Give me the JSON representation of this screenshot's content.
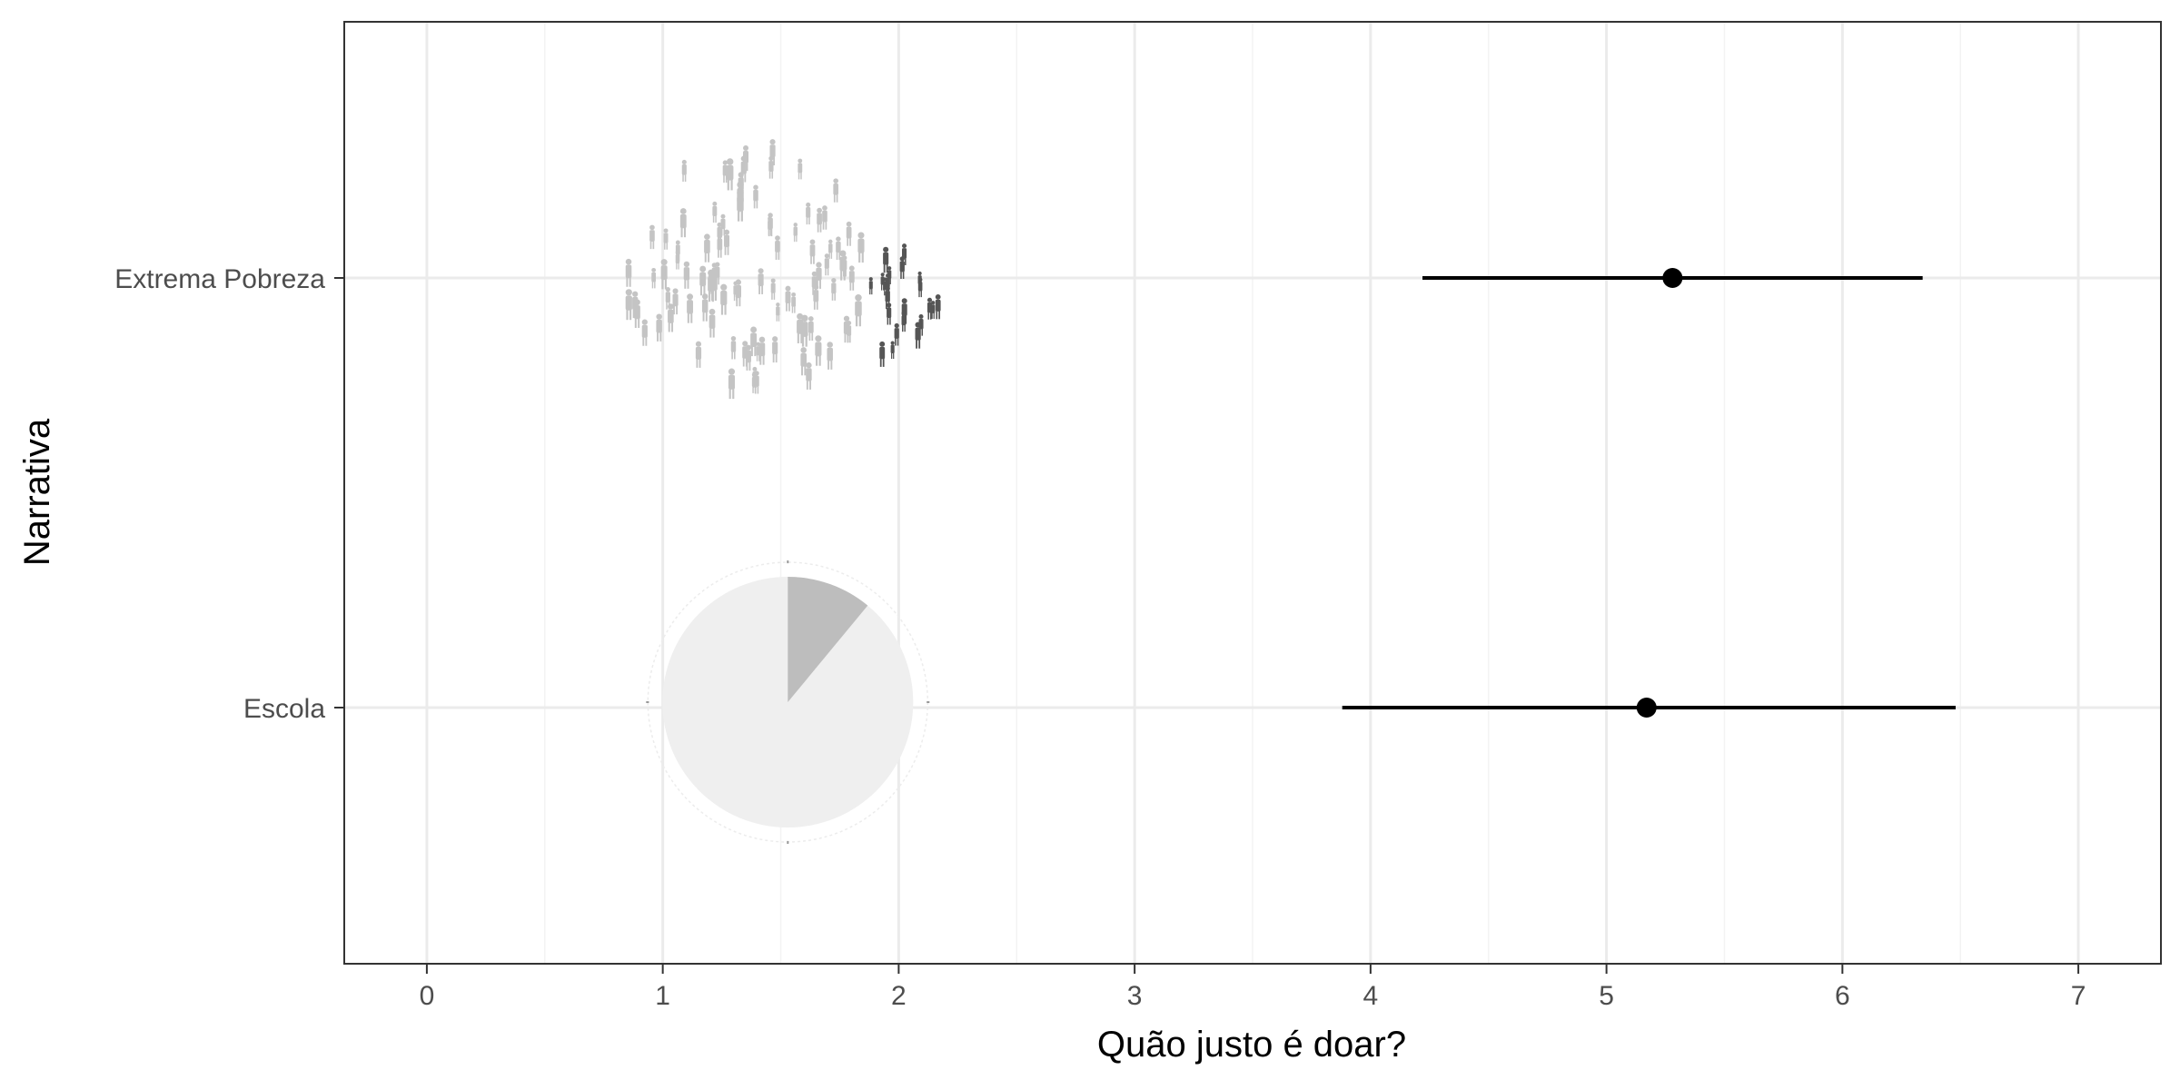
{
  "chart_data": {
    "type": "scatter",
    "orientation": "horizontal",
    "xlabel": "Quão justo é doar?",
    "ylabel": "Narrativa",
    "xlim": [
      -0.35,
      7.35
    ],
    "x_ticks": [
      0,
      1,
      2,
      3,
      4,
      5,
      6,
      7
    ],
    "categories": [
      "Extrema Pobreza",
      "Escola"
    ],
    "points": [
      {
        "category": "Extrema Pobreza",
        "mean": 5.28,
        "lower": 4.22,
        "upper": 6.34
      },
      {
        "category": "Escola",
        "mean": 5.17,
        "lower": 3.88,
        "upper": 6.48
      }
    ],
    "grid": true,
    "theme": "bw",
    "illustrations": [
      {
        "category": "Extrema Pobreza",
        "kind": "crowd-silhouettes",
        "center_x": 1.62
      },
      {
        "category": "Escola",
        "kind": "pie-icon",
        "center_x": 1.53,
        "highlight_fraction": 0.11
      }
    ],
    "colors": {
      "point": "#000000",
      "grid_major": "#ebebeb",
      "grid_minor": "#f3f3f3",
      "panel_border": "#333333",
      "crowd_light": "#c4c4c4",
      "crowd_dark": "#555555",
      "pie_base": "#efefef",
      "pie_highlight": "#bdbdbd"
    }
  }
}
